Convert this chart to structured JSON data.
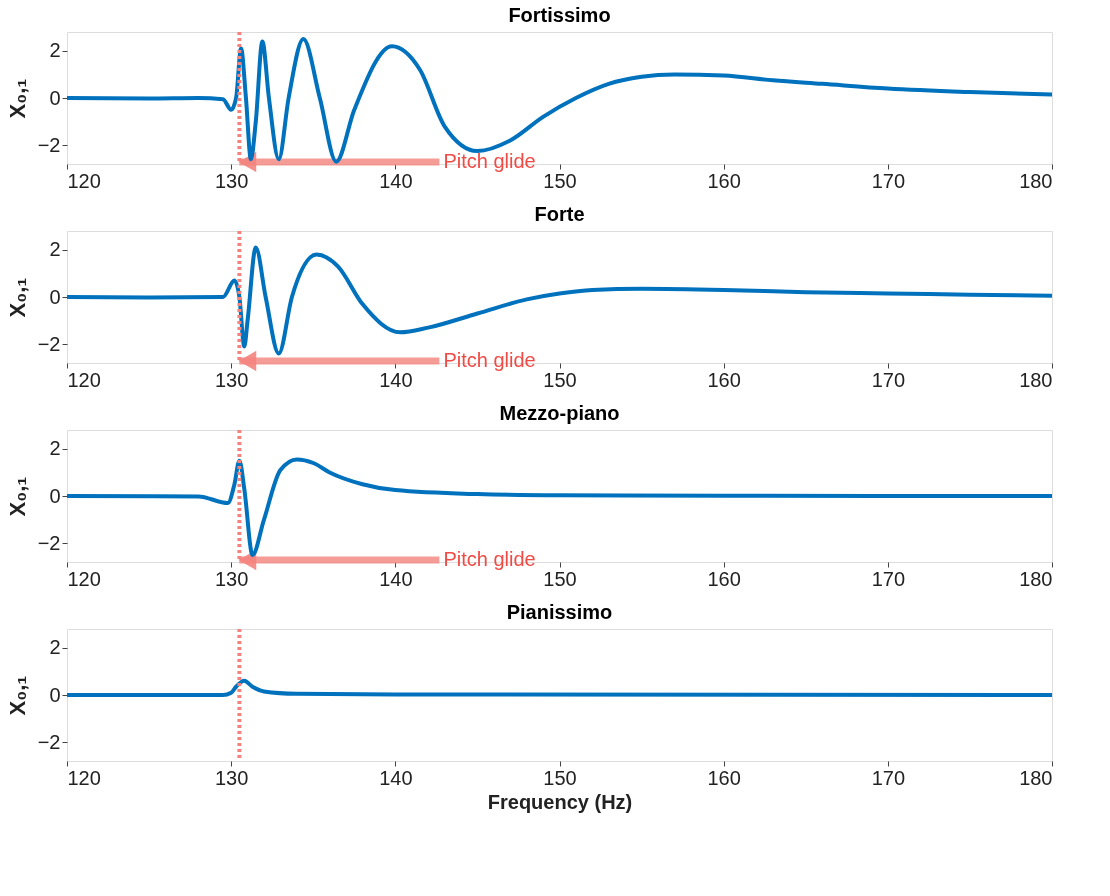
{
  "chart_data": [
    {
      "type": "line",
      "title": "Fortissimo",
      "ylabel": "X₀,₁",
      "xlim": [
        120,
        180
      ],
      "xticks": [
        120,
        130,
        140,
        150,
        160,
        170,
        180
      ],
      "ylim": [
        -2.8,
        2.8
      ],
      "yticks": [
        -2,
        0,
        2
      ],
      "grid": false,
      "series": [
        {
          "color": "#0072bd",
          "line_style": "solid",
          "x": [
            120,
            125,
            128,
            129.5,
            130,
            130.3,
            130.6,
            130.9,
            131.2,
            131.5,
            131.9,
            132.3,
            132.9,
            133.5,
            134.4,
            135.4,
            136.4,
            137.5,
            139.8,
            141.5,
            143,
            145,
            147,
            149,
            151,
            153,
            155,
            157,
            160,
            163,
            166,
            170,
            175,
            180
          ],
          "values": [
            0,
            -0.02,
            0,
            -0.05,
            -0.5,
            0,
            2.1,
            0,
            -2.6,
            -1,
            2.4,
            0,
            -2.6,
            0,
            2.5,
            0,
            -2.7,
            -0.5,
            2.2,
            1.2,
            -1.2,
            -2.25,
            -1.8,
            -0.8,
            0,
            0.6,
            0.9,
            1.0,
            0.95,
            0.75,
            0.6,
            0.4,
            0.25,
            0.15
          ]
        }
      ],
      "ref_lines": [
        {
          "axis": "x",
          "value": 130.5,
          "color": "#f4837d",
          "line_style": "dotted"
        }
      ],
      "annotations": [
        "Pitch glide"
      ]
    },
    {
      "type": "line",
      "title": "Forte",
      "ylabel": "X₀,₁",
      "xlim": [
        120,
        180
      ],
      "xticks": [
        120,
        130,
        140,
        150,
        160,
        170,
        180
      ],
      "ylim": [
        -2.8,
        2.8
      ],
      "yticks": [
        -2,
        0,
        2
      ],
      "grid": false,
      "series": [
        {
          "color": "#0072bd",
          "line_style": "solid",
          "x": [
            120,
            125,
            129.5,
            130.2,
            130.5,
            130.8,
            131,
            131.5,
            132.1,
            132.9,
            133.7,
            135.2,
            136.5,
            138,
            140.3,
            142,
            145,
            148,
            150,
            152,
            155,
            160,
            165,
            170,
            175,
            180
          ],
          "values": [
            0,
            -0.02,
            0,
            0.7,
            0,
            -2.1,
            -1,
            2.1,
            0,
            -2.4,
            0,
            1.8,
            1.3,
            -0.3,
            -1.5,
            -1.3,
            -0.7,
            -0.1,
            0.15,
            0.3,
            0.35,
            0.3,
            0.2,
            0.15,
            0.1,
            0.05
          ]
        }
      ],
      "ref_lines": [
        {
          "axis": "x",
          "value": 130.5,
          "color": "#f4837d",
          "line_style": "dotted"
        }
      ],
      "annotations": [
        "Pitch glide"
      ]
    },
    {
      "type": "line",
      "title": "Mezzo-piano",
      "ylabel": "X₀,₁",
      "xlim": [
        120,
        180
      ],
      "xticks": [
        120,
        130,
        140,
        150,
        160,
        170,
        180
      ],
      "ylim": [
        -2.8,
        2.8
      ],
      "yticks": [
        -2,
        0,
        2
      ],
      "grid": false,
      "series": [
        {
          "color": "#0072bd",
          "line_style": "solid",
          "x": [
            120,
            128,
            129.8,
            130.2,
            130.5,
            130.8,
            131.3,
            132,
            133,
            134,
            135,
            136,
            138,
            140,
            145,
            150,
            160,
            180
          ],
          "values": [
            0,
            -0.02,
            -0.3,
            0.5,
            1.5,
            0.3,
            -2.5,
            -1,
            1.1,
            1.55,
            1.4,
            1.0,
            0.5,
            0.25,
            0.08,
            0.03,
            0.01,
            0
          ]
        }
      ],
      "ref_lines": [
        {
          "axis": "x",
          "value": 130.5,
          "color": "#f4837d",
          "line_style": "dotted"
        }
      ],
      "annotations": [
        "Pitch glide"
      ]
    },
    {
      "type": "line",
      "title": "Pianissimo",
      "ylabel": "X₀,₁",
      "xlabel": "Frequency (Hz)",
      "xlim": [
        120,
        180
      ],
      "xticks": [
        120,
        130,
        140,
        150,
        160,
        170,
        180
      ],
      "ylim": [
        -2.8,
        2.8
      ],
      "yticks": [
        -2,
        0,
        2
      ],
      "grid": false,
      "series": [
        {
          "color": "#0072bd",
          "line_style": "solid",
          "x": [
            120,
            129.5,
            130,
            130.3,
            130.8,
            131.3,
            132,
            134,
            140,
            180
          ],
          "values": [
            0,
            0,
            0.1,
            0.35,
            0.6,
            0.35,
            0.15,
            0.05,
            0.02,
            0
          ]
        }
      ],
      "ref_lines": [
        {
          "axis": "x",
          "value": 130.5,
          "color": "#f4837d",
          "line_style": "dotted"
        }
      ]
    }
  ]
}
